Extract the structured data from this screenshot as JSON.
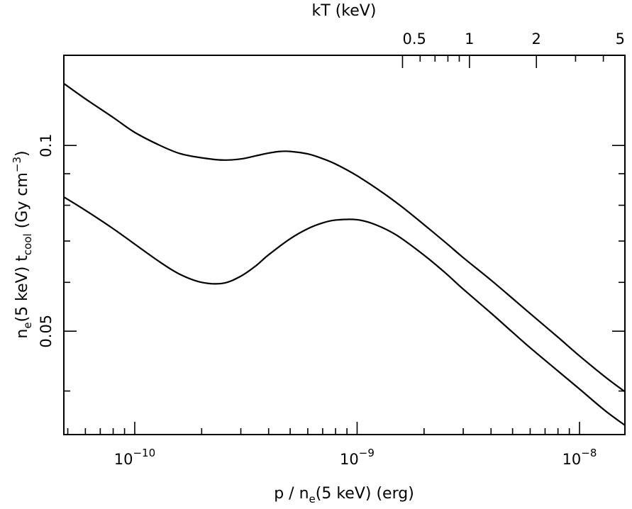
{
  "chart_data": {
    "type": "line",
    "xlabel_parts": [
      "p / n",
      "e",
      "(5 keV) (erg)"
    ],
    "x2label": "kT (keV)",
    "ylabel_parts": [
      "n",
      "e",
      "(5 keV) t",
      "cool",
      " (Gy cm",
      "−3",
      ")"
    ],
    "x_scale": "log",
    "y_scale": "log",
    "xlim": [
      4.8e-11,
      1.6e-08
    ],
    "ylim": [
      0.034,
      0.14
    ],
    "x_ticks": [
      {
        "value": 1e-10,
        "base": "10",
        "exp": "−10"
      },
      {
        "value": 1e-09,
        "base": "10",
        "exp": "−9"
      },
      {
        "value": 1e-08,
        "base": "10",
        "exp": "−8"
      }
    ],
    "y_ticks": [
      {
        "value": 0.05,
        "label": "0.05"
      },
      {
        "value": 0.1,
        "label": "0.1"
      }
    ],
    "x2_ticks": [
      {
        "value": 0.5,
        "label": "0.5"
      },
      {
        "value": 1,
        "label": "1"
      },
      {
        "value": 2,
        "label": "2"
      },
      {
        "value": 5,
        "label": "5"
      }
    ],
    "x2_relation": "kT = 5 keV × (p / n_e(5 keV)) / 1.6e-8 erg",
    "series": [
      {
        "x": [
          4.8e-11,
          6e-11,
          8e-11,
          1e-10,
          1.3e-10,
          1.6e-10,
          2e-10,
          2.5e-10,
          3e-10,
          3.5e-10,
          4e-10,
          4.5e-10,
          5e-10,
          6e-10,
          7e-10,
          8e-10,
          1e-09,
          1.3e-09,
          1.6e-09,
          2e-09,
          2.5e-09,
          3e-09,
          4e-09,
          5e-09,
          6e-09,
          8e-09,
          1e-08,
          1.3e-08,
          1.6e-08
        ],
        "y": [
          0.126,
          0.119,
          0.111,
          0.105,
          0.1,
          0.097,
          0.0955,
          0.0947,
          0.0951,
          0.0962,
          0.0972,
          0.0978,
          0.0978,
          0.0969,
          0.0952,
          0.0933,
          0.0893,
          0.0839,
          0.0794,
          0.0744,
          0.0696,
          0.0658,
          0.0605,
          0.0565,
          0.0534,
          0.0489,
          0.0456,
          0.0422,
          0.0399
        ]
      },
      {
        "x": [
          4.8e-11,
          6e-11,
          8e-11,
          1e-10,
          1.3e-10,
          1.6e-10,
          2e-10,
          2.5e-10,
          3e-10,
          3.5e-10,
          4e-10,
          5e-10,
          6e-10,
          7e-10,
          8e-10,
          1e-09,
          1.2e-09,
          1.5e-09,
          2e-09,
          2.5e-09,
          3e-09,
          4e-09,
          5e-09,
          6e-09,
          8e-09,
          1e-08,
          1.3e-08,
          1.6e-08
        ],
        "y": [
          0.0825,
          0.0785,
          0.0733,
          0.0692,
          0.0647,
          0.0618,
          0.06,
          0.0598,
          0.0614,
          0.0638,
          0.0665,
          0.0706,
          0.0733,
          0.0749,
          0.0757,
          0.0758,
          0.0745,
          0.0716,
          0.0664,
          0.0621,
          0.0585,
          0.0535,
          0.0498,
          0.047,
          0.0431,
          0.0403,
          0.0372,
          0.0352
        ]
      }
    ]
  }
}
